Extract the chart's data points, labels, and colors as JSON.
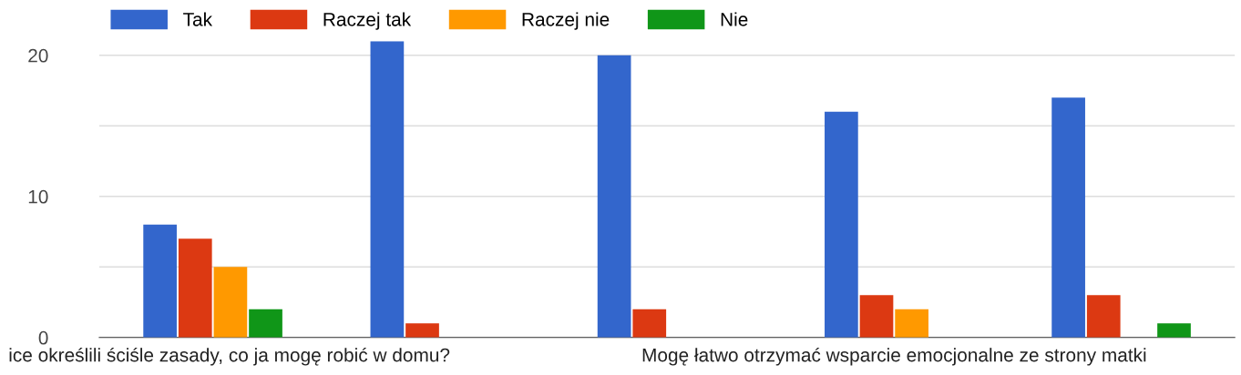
{
  "chart_data": {
    "type": "bar",
    "categories": [
      "ice określili ściśle zasady, co ja mogę robić w domu?",
      null,
      null,
      "Mogę łatwo otrzymać wsparcie emocjonalne ze strony matki",
      null
    ],
    "series": [
      {
        "name": "Tak",
        "color": "#3366cc",
        "values": [
          8,
          21,
          20,
          16,
          17
        ]
      },
      {
        "name": "Raczej tak",
        "color": "#dc3912",
        "values": [
          7,
          1,
          2,
          3,
          3
        ]
      },
      {
        "name": "Raczej nie",
        "color": "#ff9900",
        "values": [
          5,
          0,
          0,
          2,
          0
        ]
      },
      {
        "name": "Nie",
        "color": "#109618",
        "values": [
          2,
          0,
          0,
          0,
          1
        ]
      }
    ],
    "ylim": [
      0,
      21
    ],
    "yticks": [
      0,
      {
        "value": 5,
        "label": null
      },
      10,
      {
        "value": 15,
        "label": null
      },
      20
    ],
    "grid": "y",
    "legend": "top left"
  }
}
